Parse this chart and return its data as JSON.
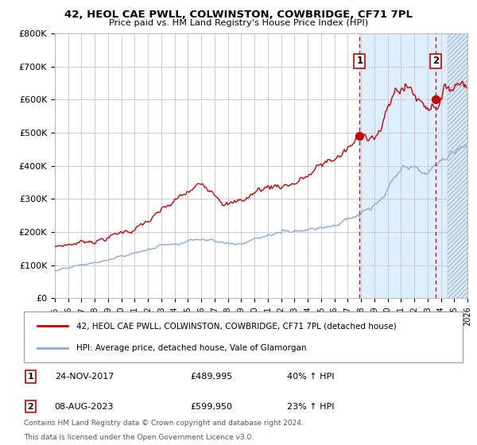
{
  "title": "42, HEOL CAE PWLL, COLWINSTON, COWBRIDGE, CF71 7PL",
  "subtitle": "Price paid vs. HM Land Registry's House Price Index (HPI)",
  "yticks": [
    0,
    100000,
    200000,
    300000,
    400000,
    500000,
    600000,
    700000,
    800000
  ],
  "ytick_labels": [
    "£0",
    "£100K",
    "£200K",
    "£300K",
    "£400K",
    "£500K",
    "£600K",
    "£700K",
    "£800K"
  ],
  "xlim_start": 1995.0,
  "xlim_end": 2026.0,
  "ylim_bottom": 0,
  "ylim_top": 800000,
  "line1_color": "#cc0000",
  "line2_color": "#88aadd",
  "bg_color": "#ffffff",
  "highlight_bg": "#ddeeff",
  "hatch_start": 2024.5,
  "grid_color": "#cccccc",
  "purchase1_x": 2017.9,
  "purchase1_y": 489995,
  "purchase1_label": "1",
  "purchase2_x": 2023.6,
  "purchase2_y": 599950,
  "purchase2_label": "2",
  "legend_line1": "42, HEOL CAE PWLL, COLWINSTON, COWBRIDGE, CF71 7PL (detached house)",
  "legend_line2": "HPI: Average price, detached house, Vale of Glamorgan",
  "table_row1": [
    "1",
    "24-NOV-2017",
    "£489,995",
    "40% ↑ HPI"
  ],
  "table_row2": [
    "2",
    "08-AUG-2023",
    "£599,950",
    "23% ↑ HPI"
  ],
  "footer1": "Contains HM Land Registry data © Crown copyright and database right 2024.",
  "footer2": "This data is licensed under the Open Government Licence v3.0."
}
